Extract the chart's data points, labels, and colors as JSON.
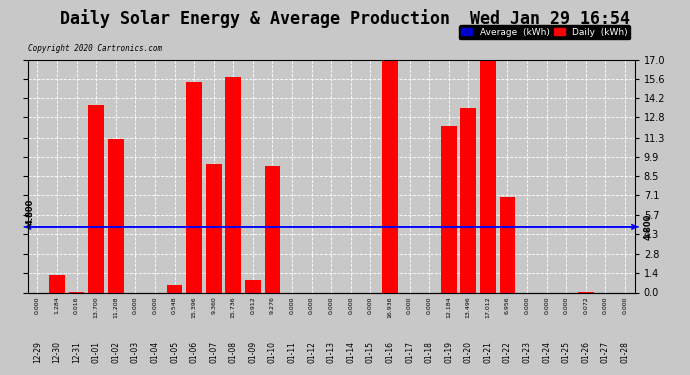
{
  "title": "Daily Solar Energy & Average Production  Wed Jan 29 16:54",
  "copyright": "Copyright 2020 Cartronics.com",
  "categories": [
    "12-29",
    "12-30",
    "12-31",
    "01-01",
    "01-02",
    "01-03",
    "01-04",
    "01-05",
    "01-06",
    "01-07",
    "01-08",
    "01-09",
    "01-10",
    "01-11",
    "01-12",
    "01-13",
    "01-14",
    "01-15",
    "01-16",
    "01-17",
    "01-18",
    "01-19",
    "01-20",
    "01-21",
    "01-22",
    "01-23",
    "01-24",
    "01-25",
    "01-26",
    "01-27",
    "01-28"
  ],
  "values": [
    0.0,
    1.284,
    0.016,
    13.7,
    11.208,
    0.0,
    0.0,
    0.548,
    15.396,
    9.36,
    15.736,
    0.912,
    9.276,
    0.0,
    0.0,
    0.0,
    0.0,
    0.0,
    16.936,
    0.0,
    0.0,
    12.184,
    13.496,
    17.012,
    6.956,
    0.0,
    0.0,
    0.0,
    0.072,
    0.0,
    0.0
  ],
  "average": 4.8,
  "bar_color": "#FF0000",
  "avg_line_color": "#0000FF",
  "background_color": "#C8C8C8",
  "plot_bg_color": "#C8C8C8",
  "ylim": [
    0.0,
    17.0
  ],
  "yticks": [
    0.0,
    1.4,
    2.8,
    4.3,
    5.7,
    7.1,
    8.5,
    9.9,
    11.3,
    12.8,
    14.2,
    15.6,
    17.0
  ],
  "grid_color": "#FFFFFF",
  "title_fontsize": 12,
  "legend_avg_color": "#0000CC",
  "legend_daily_color": "#FF0000",
  "avg_label": "4.800"
}
